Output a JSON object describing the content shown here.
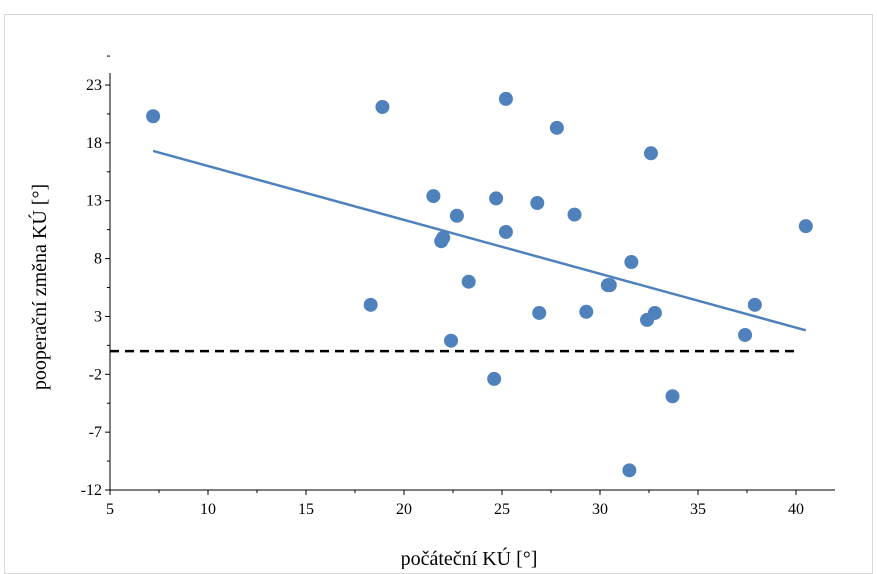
{
  "chart_data": {
    "type": "scatter",
    "xlabel": "počáteční KÚ [°]",
    "ylabel": "pooperační změna KÚ [°]",
    "xlim": [
      5,
      42
    ],
    "ylim": [
      -12,
      25
    ],
    "x_ticks": [
      5,
      10,
      15,
      20,
      25,
      30,
      35,
      40
    ],
    "y_ticks": [
      -12,
      -7,
      -2,
      3,
      8,
      13,
      18,
      23
    ],
    "x_tick_labels": [
      "5",
      "10",
      "15",
      "20",
      "25",
      "30",
      "35",
      "40"
    ],
    "y_tick_labels": [
      "-12",
      "-7",
      "-2",
      "3",
      "8",
      "13",
      "18",
      "23"
    ],
    "grid": false,
    "series": [
      {
        "points": [
          {
            "x": 7.2,
            "y": 20.3
          },
          {
            "x": 18.9,
            "y": 21.1
          },
          {
            "x": 25.2,
            "y": 21.8
          },
          {
            "x": 27.8,
            "y": 19.3
          },
          {
            "x": 32.6,
            "y": 17.1
          },
          {
            "x": 21.5,
            "y": 13.4
          },
          {
            "x": 24.7,
            "y": 13.2
          },
          {
            "x": 26.8,
            "y": 12.8
          },
          {
            "x": 22.7,
            "y": 11.7
          },
          {
            "x": 28.7,
            "y": 11.8
          },
          {
            "x": 40.5,
            "y": 10.8
          },
          {
            "x": 25.2,
            "y": 10.3
          },
          {
            "x": 22.0,
            "y": 9.8
          },
          {
            "x": 21.9,
            "y": 9.5
          },
          {
            "x": 31.6,
            "y": 7.7
          },
          {
            "x": 23.3,
            "y": 6.0
          },
          {
            "x": 30.4,
            "y": 5.7
          },
          {
            "x": 30.5,
            "y": 5.7
          },
          {
            "x": 18.3,
            "y": 4.0
          },
          {
            "x": 37.9,
            "y": 4.0
          },
          {
            "x": 26.9,
            "y": 3.3
          },
          {
            "x": 29.3,
            "y": 3.4
          },
          {
            "x": 32.8,
            "y": 3.3
          },
          {
            "x": 32.4,
            "y": 2.7
          },
          {
            "x": 37.4,
            "y": 1.4
          },
          {
            "x": 22.4,
            "y": 0.9
          },
          {
            "x": 24.6,
            "y": -2.4
          },
          {
            "x": 33.7,
            "y": -3.9
          },
          {
            "x": 31.5,
            "y": -10.3
          }
        ],
        "color": "#4f81bd"
      }
    ],
    "trendline": {
      "x": [
        7.2,
        40.5
      ],
      "y": [
        17.3,
        1.8
      ],
      "color": "#4f81bd"
    },
    "reference_line": {
      "y": 0,
      "x": [
        5,
        40.2
      ],
      "style": "dashed",
      "color": "#000000"
    }
  }
}
